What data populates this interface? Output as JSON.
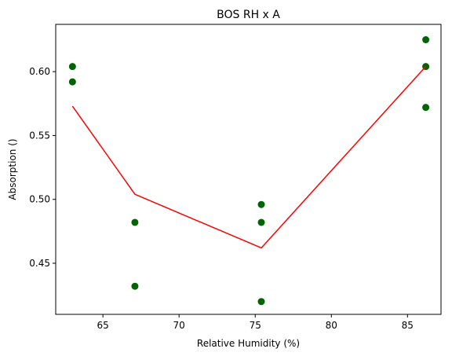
{
  "chart_data": {
    "type": "scatter",
    "title": "BOS RH x A",
    "xlabel": "Relative Humidity (%)",
    "ylabel": "Absorption ()",
    "xlim": [
      61.9,
      87.2
    ],
    "ylim": [
      0.41,
      0.637
    ],
    "x_ticks": [
      65,
      70,
      75,
      80,
      85
    ],
    "y_ticks": [
      0.45,
      0.5,
      0.55,
      0.6
    ],
    "x_tick_labels": [
      "65",
      "70",
      "75",
      "80",
      "85"
    ],
    "y_tick_labels": [
      "0.45",
      "0.50",
      "0.55",
      "0.60"
    ],
    "grid": false,
    "series": [
      {
        "kind": "scatter",
        "color": "#006400",
        "points": [
          [
            63.0,
            0.604
          ],
          [
            63.0,
            0.592
          ],
          [
            67.1,
            0.482
          ],
          [
            67.1,
            0.432
          ],
          [
            75.4,
            0.496
          ],
          [
            75.4,
            0.482
          ],
          [
            75.4,
            0.42
          ],
          [
            86.2,
            0.625
          ],
          [
            86.2,
            0.604
          ],
          [
            86.2,
            0.572
          ]
        ]
      },
      {
        "kind": "line",
        "color": "#ff0000",
        "points": [
          [
            63.0,
            0.573
          ],
          [
            67.1,
            0.504
          ],
          [
            75.4,
            0.462
          ],
          [
            86.2,
            0.604
          ]
        ]
      }
    ]
  }
}
